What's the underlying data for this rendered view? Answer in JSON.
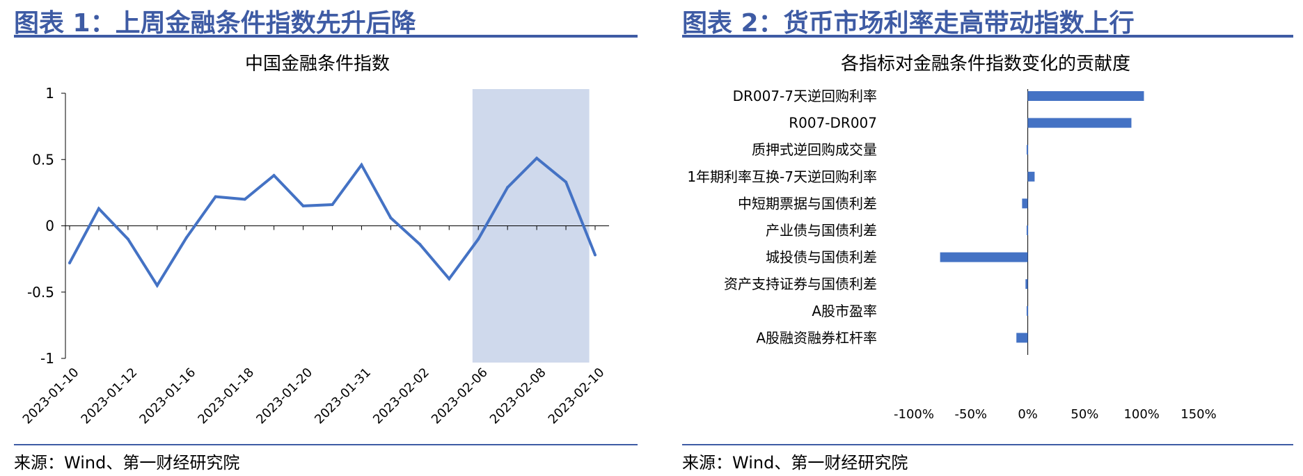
{
  "left_panel": {
    "figure_title": "图表 1：上周金融条件指数先升后降",
    "source": "来源：Wind、第一财经研究院"
  },
  "right_panel": {
    "figure_title": "图表 2：货币市场利率走高带动指数上行",
    "source": "来源：Wind、第一财经研究院"
  },
  "colors": {
    "accent": "#3e5ba4",
    "series": "#4472c4",
    "highlight": "#cfd9ec"
  },
  "chart_data": [
    {
      "type": "line",
      "title": "中国金融条件指数",
      "x_tick_labels": [
        "2023-01-10",
        "2023-01-12",
        "2023-01-16",
        "2023-01-18",
        "2023-01-20",
        "2023-01-31",
        "2023-02-02",
        "2023-02-06",
        "2023-02-08",
        "2023-02-10"
      ],
      "y_ticks": [
        "1",
        "0.5",
        "0",
        "-0.5",
        "-1"
      ],
      "ylim": [
        -1,
        1
      ],
      "values": [
        -0.28,
        0.13,
        -0.1,
        -0.45,
        -0.09,
        0.22,
        0.2,
        0.38,
        0.15,
        0.16,
        0.46,
        0.06,
        -0.14,
        -0.4,
        -0.1,
        0.29,
        0.51,
        0.33,
        -0.22
      ],
      "highlight_range": [
        13.8,
        17.8
      ],
      "grid": false
    },
    {
      "type": "bar",
      "orientation": "horizontal",
      "title": "各指标对金融条件指数变化的贡献度",
      "categories": [
        "DR007-7天逆回购利率",
        "R007-DR007",
        "质押式逆回购成交量",
        "1年期利率互换-7天逆回购利率",
        "中短期票据与国债利差",
        "产业债与国债利差",
        "城投债与国债利差",
        "资产支持证券与国债利差",
        "A股市盈率",
        "A股融资融券杠杆率"
      ],
      "values": [
        1.02,
        0.91,
        -0.01,
        0.06,
        -0.05,
        -0.01,
        -0.77,
        -0.02,
        -0.01,
        -0.1
      ],
      "x_tick_labels": [
        "-100%",
        "-50%",
        "0%",
        "50%",
        "100%",
        "150%"
      ],
      "xlim": [
        -1,
        1.5
      ],
      "grid": false
    }
  ]
}
